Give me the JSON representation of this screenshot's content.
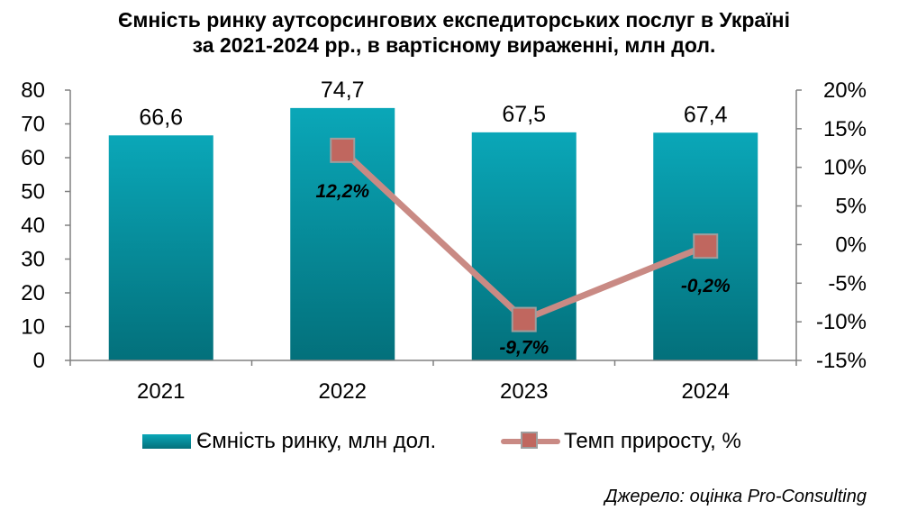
{
  "title": {
    "line1": "Ємність ринку аутсорсингових експедиторських послуг в Україні",
    "line2": "за 2021-2024 рр., в вартісному вираженні, млн дол."
  },
  "chart_data": {
    "type": "bar",
    "categories": [
      "2021",
      "2022",
      "2023",
      "2024"
    ],
    "series": [
      {
        "name": "Ємність ринку, млн дол.",
        "kind": "bar",
        "axis": "left",
        "values": [
          66.6,
          74.7,
          67.5,
          67.4
        ],
        "labels": [
          "66,6",
          "74,7",
          "67,5",
          "67,4"
        ]
      },
      {
        "name": "Темп приросту, %",
        "kind": "line",
        "axis": "right",
        "points": [
          {
            "category": "2022",
            "value": 12.2,
            "label": "12,2%"
          },
          {
            "category": "2023",
            "value": -9.7,
            "label": "-9,7%"
          },
          {
            "category": "2024",
            "value": -0.2,
            "label": "-0,2%"
          }
        ]
      }
    ],
    "left_axis": {
      "min": 0,
      "max": 80,
      "step": 10,
      "ticks": [
        "0",
        "10",
        "20",
        "30",
        "40",
        "50",
        "60",
        "70",
        "80"
      ]
    },
    "right_axis": {
      "min": -15,
      "max": 20,
      "step": 5,
      "ticks": [
        "-15%",
        "-10%",
        "-5%",
        "0%",
        "5%",
        "10%",
        "15%",
        "20%"
      ]
    },
    "grid": false,
    "legend_position": "bottom"
  },
  "colors": {
    "bar_top": "#0aa7b8",
    "bar_bottom": "#03707b",
    "line": "#c98a84",
    "marker": "#c0675f",
    "marker_border": "#9e9e9e",
    "axis": "#808080"
  },
  "legend": {
    "bar_label": "Ємність ринку, млн дол.",
    "line_label": "Темп приросту, %"
  },
  "source": "Джерело: оцінка Pro-Consulting"
}
